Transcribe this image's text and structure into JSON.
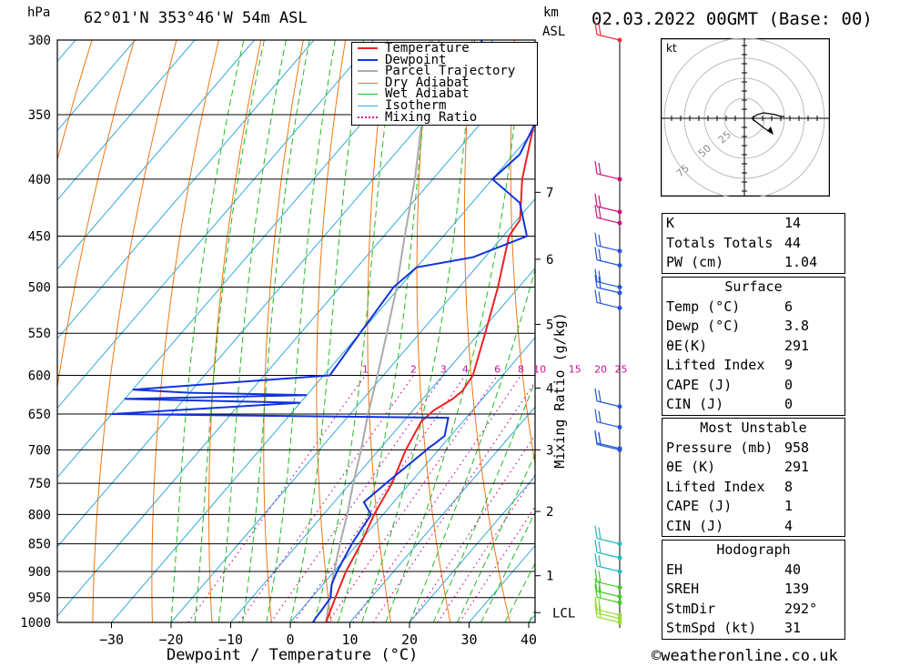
{
  "header": {
    "pressure_unit": "hPa",
    "location": "62°01'N 353°46'W 54m ASL",
    "km_unit_top": "km",
    "km_unit_bottom": "ASL",
    "datetime": "02.03.2022 00GMT (Base: 00)"
  },
  "footer": {
    "copyright": "©weatheronline.co.uk"
  },
  "colors": {
    "temperature": "#ee2222",
    "dewpoint": "#1133dd",
    "parcel": "#aaaaaa",
    "dry_adiabat": "#ee7711",
    "wet_adiabat": "#22bb22",
    "isotherm": "#33aadd",
    "mixing_ratio": "#cc1199"
  },
  "chart_data": {
    "type": "line",
    "title": "62°01'N 353°46'W 54m ASL",
    "xlabel": "Dewpoint / Temperature (°C)",
    "ylabel": "hPa",
    "y2label": "Mixing Ratio (g/kg)",
    "xlim": [
      -40,
      40
    ],
    "ylim": [
      1000,
      300
    ],
    "y_scale": "log",
    "grid": true,
    "legend_position": "top-center",
    "x_ticks": [
      -30,
      -20,
      -10,
      0,
      10,
      20,
      30,
      40
    ],
    "pressure_ticks": [
      300,
      350,
      400,
      450,
      500,
      550,
      600,
      650,
      700,
      750,
      800,
      850,
      900,
      950,
      1000
    ],
    "km_ticks": [
      {
        "label": "1",
        "p": 908
      },
      {
        "label": "2",
        "p": 795
      },
      {
        "label": "3",
        "p": 700
      },
      {
        "label": "4",
        "p": 616
      },
      {
        "label": "5",
        "p": 540
      },
      {
        "label": "6",
        "p": 472
      },
      {
        "label": "7",
        "p": 411
      },
      {
        "label": "LCL",
        "p": 980
      }
    ],
    "mixing_ratio_labels": [
      "1",
      "2",
      "3",
      "4",
      "6",
      "8",
      "10",
      "15",
      "20",
      "25"
    ],
    "series": [
      {
        "name": "Temperature",
        "p": [
          1000,
          975,
          950,
          925,
          900,
          850,
          800,
          750,
          700,
          660,
          645,
          630,
          620,
          600,
          550,
          500,
          450,
          435,
          400,
          350,
          300
        ],
        "t": [
          6,
          5,
          4,
          3,
          2,
          0.5,
          -1.5,
          -3,
          -5.5,
          -7,
          -6.5,
          -5,
          -4.5,
          -5,
          -9,
          -13.5,
          -19,
          -19.5,
          -25,
          -32,
          -42
        ]
      },
      {
        "name": "Dewpoint",
        "p": [
          1000,
          990,
          975,
          950,
          925,
          900,
          850,
          800,
          780,
          750,
          700,
          698,
          690,
          680,
          655,
          650,
          640,
          635,
          630,
          625,
          622,
          618,
          600,
          550,
          500,
          480,
          470,
          450,
          420,
          400,
          380,
          355,
          300
        ],
        "t": [
          3.8,
          3.6,
          3.5,
          3.2,
          1.5,
          0.5,
          -1,
          -2,
          -5,
          -4,
          -2,
          -2,
          -1.5,
          -1,
          -3,
          -60,
          -40,
          -30,
          -60,
          -30,
          -50,
          -60,
          -29,
          -30,
          -31,
          -30,
          -22,
          -16,
          -22,
          -30,
          -29,
          -31,
          -52
        ]
      },
      {
        "name": "Parcel Trajectory",
        "p": [
          1000,
          950,
          900,
          850,
          800,
          750,
          700,
          650,
          600,
          550,
          500,
          450,
          400,
          350,
          300
        ],
        "t": [
          6,
          3,
          0,
          -3,
          -6,
          -9.5,
          -13,
          -17,
          -21,
          -25.5,
          -30.5,
          -36.5,
          -43,
          -51,
          -59
        ]
      }
    ],
    "overlays": [
      "Dry Adiabat",
      "Wet Adiabat",
      "Isotherm",
      "Mixing Ratio"
    ],
    "wind_barbs_p": [
      300,
      400,
      428,
      438,
      464,
      478,
      500,
      506,
      522,
      640,
      668,
      698,
      700,
      850,
      875,
      900,
      930,
      948,
      960,
      985,
      992,
      1000
    ]
  },
  "hodograph": {
    "unit": "kt",
    "ring_labels": [
      "25",
      "50",
      "75"
    ]
  },
  "indices": {
    "top": [
      {
        "label": "K",
        "value": "14"
      },
      {
        "label": "Totals Totals",
        "value": "44"
      },
      {
        "label": "PW (cm)",
        "value": "1.04"
      }
    ],
    "surface_title": "Surface",
    "surface": [
      {
        "label": "Temp (°C)",
        "value": "6"
      },
      {
        "label": "Dewp (°C)",
        "value": "3.8"
      },
      {
        "label": "θE(K)",
        "value": "291"
      },
      {
        "label": "Lifted Index",
        "value": "9"
      },
      {
        "label": "CAPE (J)",
        "value": "0"
      },
      {
        "label": "CIN (J)",
        "value": "0"
      }
    ],
    "mu_title": "Most Unstable",
    "mu": [
      {
        "label": "Pressure (mb)",
        "value": "958"
      },
      {
        "label": "θE (K)",
        "value": "291"
      },
      {
        "label": "Lifted Index",
        "value": "8"
      },
      {
        "label": "CAPE (J)",
        "value": "1"
      },
      {
        "label": "CIN (J)",
        "value": "4"
      }
    ],
    "hodo_title": "Hodograph",
    "hodo": [
      {
        "label": "EH",
        "value": "40"
      },
      {
        "label": "SREH",
        "value": "139"
      },
      {
        "label": "StmDir",
        "value": "292°"
      },
      {
        "label": "StmSpd (kt)",
        "value": "31"
      }
    ]
  }
}
